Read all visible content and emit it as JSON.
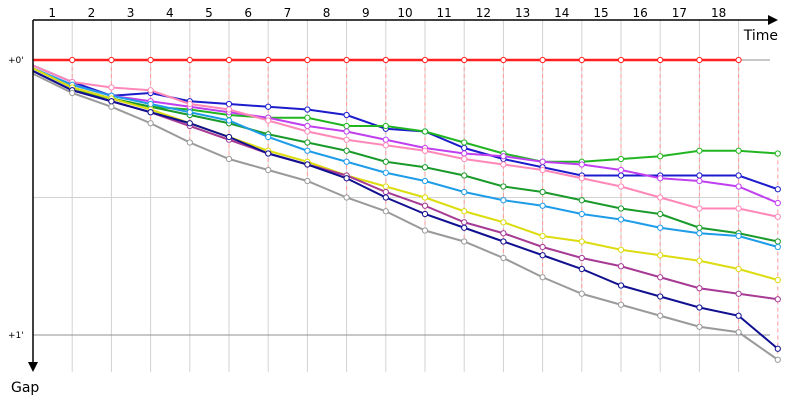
{
  "chart_data": {
    "type": "line",
    "xlabel": "Time",
    "ylabel": "Gap",
    "x_ticks": [
      "1",
      "2",
      "3",
      "4",
      "5",
      "6",
      "7",
      "8",
      "9",
      "10",
      "11",
      "12",
      "13",
      "14",
      "15",
      "16",
      "17",
      "18"
    ],
    "y_ticks": [
      "+0'",
      "+1'"
    ],
    "y_direction": "down",
    "ylim": [
      0,
      1
    ],
    "grid": true,
    "reference": {
      "color": "#ff2020",
      "y": 0,
      "x": [
        0,
        18
      ]
    },
    "series": [
      {
        "color": "#1c1ccc",
        "x": [
          0,
          1,
          2,
          3,
          4,
          5,
          6,
          7,
          8,
          9,
          10,
          11,
          12,
          13,
          14,
          15,
          16,
          17,
          18,
          19
        ],
        "y": [
          0.02,
          0.08,
          0.13,
          0.12,
          0.15,
          0.16,
          0.17,
          0.18,
          0.2,
          0.25,
          0.26,
          0.32,
          0.36,
          0.39,
          0.42,
          0.42,
          0.42,
          0.42,
          0.42,
          0.47
        ]
      },
      {
        "color": "#22b522",
        "x": [
          0,
          1,
          2,
          3,
          4,
          5,
          6,
          7,
          8,
          9,
          10,
          11,
          12,
          13,
          14,
          15,
          16,
          17,
          18,
          19
        ],
        "y": [
          0.03,
          0.1,
          0.14,
          0.17,
          0.18,
          0.2,
          0.21,
          0.21,
          0.24,
          0.24,
          0.26,
          0.3,
          0.34,
          0.37,
          0.37,
          0.36,
          0.35,
          0.33,
          0.33,
          0.34
        ]
      },
      {
        "color": "#c040f0",
        "x": [
          0,
          1,
          2,
          3,
          4,
          5,
          6,
          7,
          8,
          9,
          10,
          11,
          12,
          13,
          14,
          15,
          16,
          17,
          18,
          19
        ],
        "y": [
          0.03,
          0.09,
          0.13,
          0.15,
          0.17,
          0.19,
          0.21,
          0.24,
          0.26,
          0.29,
          0.32,
          0.34,
          0.35,
          0.37,
          0.38,
          0.4,
          0.43,
          0.44,
          0.46,
          0.52
        ]
      },
      {
        "color": "#ff88b8",
        "x": [
          0,
          1,
          2,
          3,
          4,
          5,
          6,
          7,
          8,
          9,
          10,
          11,
          12,
          13,
          14,
          15,
          16,
          17,
          18,
          19
        ],
        "y": [
          0.02,
          0.08,
          0.1,
          0.11,
          0.16,
          0.18,
          0.22,
          0.26,
          0.29,
          0.31,
          0.33,
          0.36,
          0.38,
          0.4,
          0.43,
          0.46,
          0.5,
          0.54,
          0.54,
          0.57
        ]
      },
      {
        "color": "#1a9a2a",
        "x": [
          0,
          1,
          2,
          3,
          4,
          5,
          6,
          7,
          8,
          9,
          10,
          11,
          12,
          13,
          14,
          15,
          16,
          17,
          18,
          19
        ],
        "y": [
          0.04,
          0.11,
          0.14,
          0.17,
          0.2,
          0.23,
          0.27,
          0.3,
          0.33,
          0.37,
          0.39,
          0.42,
          0.46,
          0.48,
          0.51,
          0.54,
          0.56,
          0.61,
          0.63,
          0.66
        ]
      },
      {
        "color": "#1e9ce8",
        "x": [
          0,
          1,
          2,
          3,
          4,
          5,
          6,
          7,
          8,
          9,
          10,
          11,
          12,
          13,
          14,
          15,
          16,
          17,
          18,
          19
        ],
        "y": [
          0.03,
          0.09,
          0.13,
          0.16,
          0.19,
          0.22,
          0.28,
          0.33,
          0.37,
          0.41,
          0.44,
          0.48,
          0.51,
          0.53,
          0.56,
          0.58,
          0.61,
          0.63,
          0.64,
          0.68
        ]
      },
      {
        "color": "#dcdc10",
        "x": [
          0,
          1,
          2,
          3,
          4,
          5,
          6,
          7,
          8,
          9,
          10,
          11,
          12,
          13,
          14,
          15,
          16,
          17,
          18,
          19
        ],
        "y": [
          0.03,
          0.1,
          0.14,
          0.18,
          0.23,
          0.28,
          0.33,
          0.37,
          0.42,
          0.46,
          0.5,
          0.55,
          0.59,
          0.64,
          0.66,
          0.69,
          0.71,
          0.73,
          0.76,
          0.8
        ]
      },
      {
        "color": "#a63a94",
        "x": [
          0,
          1,
          2,
          3,
          4,
          5,
          6,
          7,
          8,
          9,
          10,
          11,
          12,
          13,
          14,
          15,
          16,
          17,
          18,
          19
        ],
        "y": [
          0.04,
          0.11,
          0.15,
          0.19,
          0.24,
          0.29,
          0.34,
          0.38,
          0.42,
          0.48,
          0.53,
          0.59,
          0.63,
          0.68,
          0.72,
          0.75,
          0.79,
          0.83,
          0.85,
          0.87
        ]
      },
      {
        "color": "#101090",
        "x": [
          0,
          1,
          2,
          3,
          4,
          5,
          6,
          7,
          8,
          9,
          10,
          11,
          12,
          13,
          14,
          15,
          16,
          17,
          18,
          19
        ],
        "y": [
          0.04,
          0.11,
          0.15,
          0.19,
          0.23,
          0.28,
          0.34,
          0.38,
          0.43,
          0.5,
          0.56,
          0.61,
          0.66,
          0.71,
          0.76,
          0.82,
          0.86,
          0.9,
          0.93,
          1.05
        ]
      },
      {
        "color": "#9a9a9a",
        "x": [
          0,
          1,
          2,
          3,
          4,
          5,
          6,
          7,
          8,
          9,
          10,
          11,
          12,
          13,
          14,
          15,
          16,
          17,
          18,
          19
        ],
        "y": [
          0.05,
          0.12,
          0.17,
          0.23,
          0.3,
          0.36,
          0.4,
          0.44,
          0.5,
          0.55,
          0.62,
          0.66,
          0.72,
          0.79,
          0.85,
          0.89,
          0.93,
          0.97,
          0.99,
          1.09
        ]
      }
    ]
  }
}
